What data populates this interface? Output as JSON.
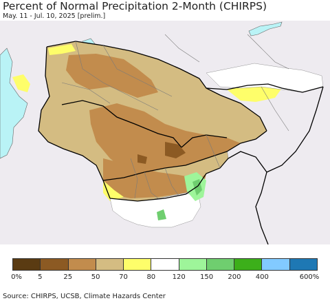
{
  "title": "Percent of Normal Precipitation 2-Month (CHIRPS)",
  "subtitle": "May. 11 - Jul. 10, 2025 [prelim.]",
  "legend": {
    "swatches": [
      {
        "color": "#5a3b12"
      },
      {
        "color": "#8c5a23"
      },
      {
        "color": "#c28c4d"
      },
      {
        "color": "#d4bc82"
      },
      {
        "color": "#fefe6a"
      },
      {
        "color": "#ffffff"
      },
      {
        "color": "#9ef59a"
      },
      {
        "color": "#6fce6f"
      },
      {
        "color": "#3caf1a"
      },
      {
        "color": "#82caff"
      },
      {
        "color": "#1e78b4"
      }
    ],
    "labels": [
      "0%",
      "5",
      "25",
      "50",
      "70",
      "80",
      "120",
      "150",
      "200",
      "400",
      "600%"
    ]
  },
  "colors": {
    "background": "#eeebf0",
    "water": "#b9f3f6",
    "border": "#000000",
    "province": "#7a7a7a"
  },
  "source": "Source: CHIRPS, UCSB, Climate Hazards Center"
}
